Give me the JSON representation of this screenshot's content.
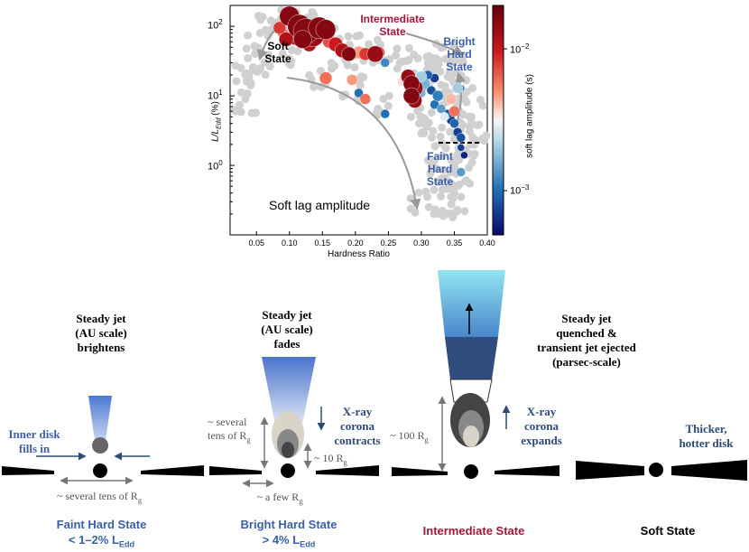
{
  "chart": {
    "ylabel_main": "L/L",
    "ylabel_sub": "Edd",
    "ylabel_unit": " (%)",
    "xlabel": "Hardness Ratio",
    "colorbar_label": "soft lag amplitude (s)",
    "panel_label": "Soft lag amplitude",
    "x_ticks": [
      "0.05",
      "0.10",
      "0.15",
      "0.20",
      "0.25",
      "0.30",
      "0.35",
      "0.40"
    ],
    "y_ticks": [
      {
        "base": "10",
        "exp": "2"
      },
      {
        "base": "10",
        "exp": "1"
      },
      {
        "base": "10",
        "exp": "0"
      }
    ],
    "cbar_ticks": [
      {
        "base": "10",
        "exp": "−2"
      },
      {
        "base": "10",
        "exp": "−3"
      }
    ],
    "annotations": {
      "soft_state": [
        "Soft",
        "State"
      ],
      "intermediate_state": [
        "Intermediate",
        "State"
      ],
      "bright_hard_state": [
        "Bright",
        "Hard",
        "State"
      ],
      "faint_hard_state": [
        "Faint",
        "Hard",
        "State"
      ]
    },
    "colors": {
      "high_lag": "#a50f15",
      "low_lag": "#0a0a6e",
      "background_points": "#d0d0d0"
    }
  },
  "chart_data": {
    "type": "scatter",
    "xlabel": "Hardness Ratio",
    "ylabel": "L/LEdd (%)",
    "colorbar": "soft lag amplitude (s)",
    "xlim": [
      0.01,
      0.4
    ],
    "ylim": [
      0.1,
      200
    ],
    "y_scale": "log",
    "color_scale": "log",
    "color_range": [
      0.0003,
      0.04
    ],
    "threshold_line_y": 2,
    "points": [
      {
        "x": 0.1,
        "y": 140,
        "lag": 0.03,
        "s": 11
      },
      {
        "x": 0.115,
        "y": 100,
        "lag": 0.03,
        "s": 13
      },
      {
        "x": 0.125,
        "y": 85,
        "lag": 0.03,
        "s": 14
      },
      {
        "x": 0.135,
        "y": 75,
        "lag": 0.025,
        "s": 13
      },
      {
        "x": 0.145,
        "y": 95,
        "lag": 0.03,
        "s": 12
      },
      {
        "x": 0.155,
        "y": 90,
        "lag": 0.03,
        "s": 11
      },
      {
        "x": 0.11,
        "y": 70,
        "lag": 0.02,
        "s": 9
      },
      {
        "x": 0.12,
        "y": 65,
        "lag": 0.03,
        "s": 10
      },
      {
        "x": 0.13,
        "y": 55,
        "lag": 0.02,
        "s": 8
      },
      {
        "x": 0.085,
        "y": 95,
        "lag": 0.012,
        "s": 7
      },
      {
        "x": 0.09,
        "y": 80,
        "lag": 0.008,
        "s": 6
      },
      {
        "x": 0.095,
        "y": 65,
        "lag": 0.02,
        "s": 8
      },
      {
        "x": 0.16,
        "y": 60,
        "lag": 0.01,
        "s": 7
      },
      {
        "x": 0.17,
        "y": 55,
        "lag": 0.015,
        "s": 8
      },
      {
        "x": 0.18,
        "y": 45,
        "lag": 0.02,
        "s": 8
      },
      {
        "x": 0.19,
        "y": 40,
        "lag": 0.03,
        "s": 8
      },
      {
        "x": 0.19,
        "y": 42,
        "lag": 0.003,
        "s": 5
      },
      {
        "x": 0.205,
        "y": 42,
        "lag": 0.006,
        "s": 7
      },
      {
        "x": 0.215,
        "y": 40,
        "lag": 0.012,
        "s": 7
      },
      {
        "x": 0.23,
        "y": 40,
        "lag": 0.025,
        "s": 9
      },
      {
        "x": 0.235,
        "y": 42,
        "lag": 0.01,
        "s": 7
      },
      {
        "x": 0.245,
        "y": 30,
        "lag": 0.001,
        "s": 5
      },
      {
        "x": 0.155,
        "y": 18,
        "lag": 0.008,
        "s": 7
      },
      {
        "x": 0.195,
        "y": 17,
        "lag": 0.006,
        "s": 6
      },
      {
        "x": 0.205,
        "y": 11,
        "lag": 0.0008,
        "s": 5
      },
      {
        "x": 0.215,
        "y": 9,
        "lag": 0.008,
        "s": 6
      },
      {
        "x": 0.245,
        "y": 5.5,
        "lag": 0.0008,
        "s": 5
      },
      {
        "x": 0.28,
        "y": 19,
        "lag": 0.025,
        "s": 8
      },
      {
        "x": 0.285,
        "y": 15,
        "lag": 0.03,
        "s": 9
      },
      {
        "x": 0.29,
        "y": 13,
        "lag": 0.025,
        "s": 9
      },
      {
        "x": 0.285,
        "y": 10,
        "lag": 0.03,
        "s": 9
      },
      {
        "x": 0.29,
        "y": 8.5,
        "lag": 0.025,
        "s": 8
      },
      {
        "x": 0.3,
        "y": 19,
        "lag": 0.002,
        "s": 6
      },
      {
        "x": 0.305,
        "y": 15,
        "lag": 0.0015,
        "s": 6
      },
      {
        "x": 0.31,
        "y": 20,
        "lag": 0.0007,
        "s": 5
      },
      {
        "x": 0.32,
        "y": 18,
        "lag": 0.0005,
        "s": 5
      },
      {
        "x": 0.315,
        "y": 12,
        "lag": 0.0006,
        "s": 5
      },
      {
        "x": 0.325,
        "y": 10,
        "lag": 0.0009,
        "s": 6
      },
      {
        "x": 0.32,
        "y": 7.5,
        "lag": 0.0008,
        "s": 5
      },
      {
        "x": 0.33,
        "y": 6.5,
        "lag": 0.0012,
        "s": 5
      },
      {
        "x": 0.34,
        "y": 5.5,
        "lag": 0.0006,
        "s": 5
      },
      {
        "x": 0.345,
        "y": 4.5,
        "lag": 0.0005,
        "s": 5
      },
      {
        "x": 0.35,
        "y": 4.0,
        "lag": 0.0007,
        "s": 5
      },
      {
        "x": 0.355,
        "y": 3.0,
        "lag": 0.0005,
        "s": 5
      },
      {
        "x": 0.36,
        "y": 2.5,
        "lag": 0.0006,
        "s": 5
      },
      {
        "x": 0.345,
        "y": 9,
        "lag": 0.005,
        "s": 6
      },
      {
        "x": 0.35,
        "y": 6,
        "lag": 0.008,
        "s": 6
      },
      {
        "x": 0.335,
        "y": 5,
        "lag": 0.003,
        "s": 5
      },
      {
        "x": 0.355,
        "y": 13,
        "lag": 0.002,
        "s": 6
      },
      {
        "x": 0.36,
        "y": 1.8,
        "lag": 0.0005,
        "s": 4
      },
      {
        "x": 0.365,
        "y": 1.4,
        "lag": 0.0004,
        "s": 4
      },
      {
        "x": 0.36,
        "y": 0.8,
        "lag": 0.0012,
        "s": 5
      },
      {
        "x": 0.3,
        "y": 13,
        "lag": 0.0006,
        "s": 5
      },
      {
        "x": 0.27,
        "y": 16,
        "lag": 0.004,
        "s": 5
      },
      {
        "x": 0.3,
        "y": 11,
        "lag": 0.0015,
        "s": 5
      },
      {
        "x": 0.36,
        "y": 13,
        "lag": 0.0006,
        "s": 4
      }
    ]
  },
  "bottom": {
    "faint": {
      "jet_caption": [
        "Steady jet",
        "(AU scale)",
        "brightens"
      ],
      "inner_disk": [
        "Inner disk",
        "fills in"
      ],
      "radius_label": "~ several tens of R",
      "state_name": "Faint Hard State",
      "lum_prefix": "< 1–2% L",
      "lum_sub": "Edd"
    },
    "bright": {
      "jet_caption": [
        "Steady jet",
        "(AU scale)",
        "fades"
      ],
      "several_tens": [
        "~ several",
        "tens of R"
      ],
      "ten_rg": "~ 10 R",
      "few_rg": "~ a few R",
      "corona": [
        "X-ray",
        "corona",
        "contracts"
      ],
      "state_name": "Bright Hard State",
      "lum_prefix": "> 4% L",
      "lum_sub": "Edd"
    },
    "intermediate": {
      "jet_caption": [
        "Steady jet",
        "quenched &",
        "transient jet ejected",
        "(parsec-scale)"
      ],
      "hundred_rg": "~ 100 R",
      "corona": [
        "X-ray",
        "corona",
        "expands"
      ],
      "state_name": "Intermediate State"
    },
    "soft": {
      "disk_caption": [
        "Thicker,",
        "hotter disk"
      ],
      "state_name": "Soft State"
    },
    "rg_sub": "g"
  }
}
